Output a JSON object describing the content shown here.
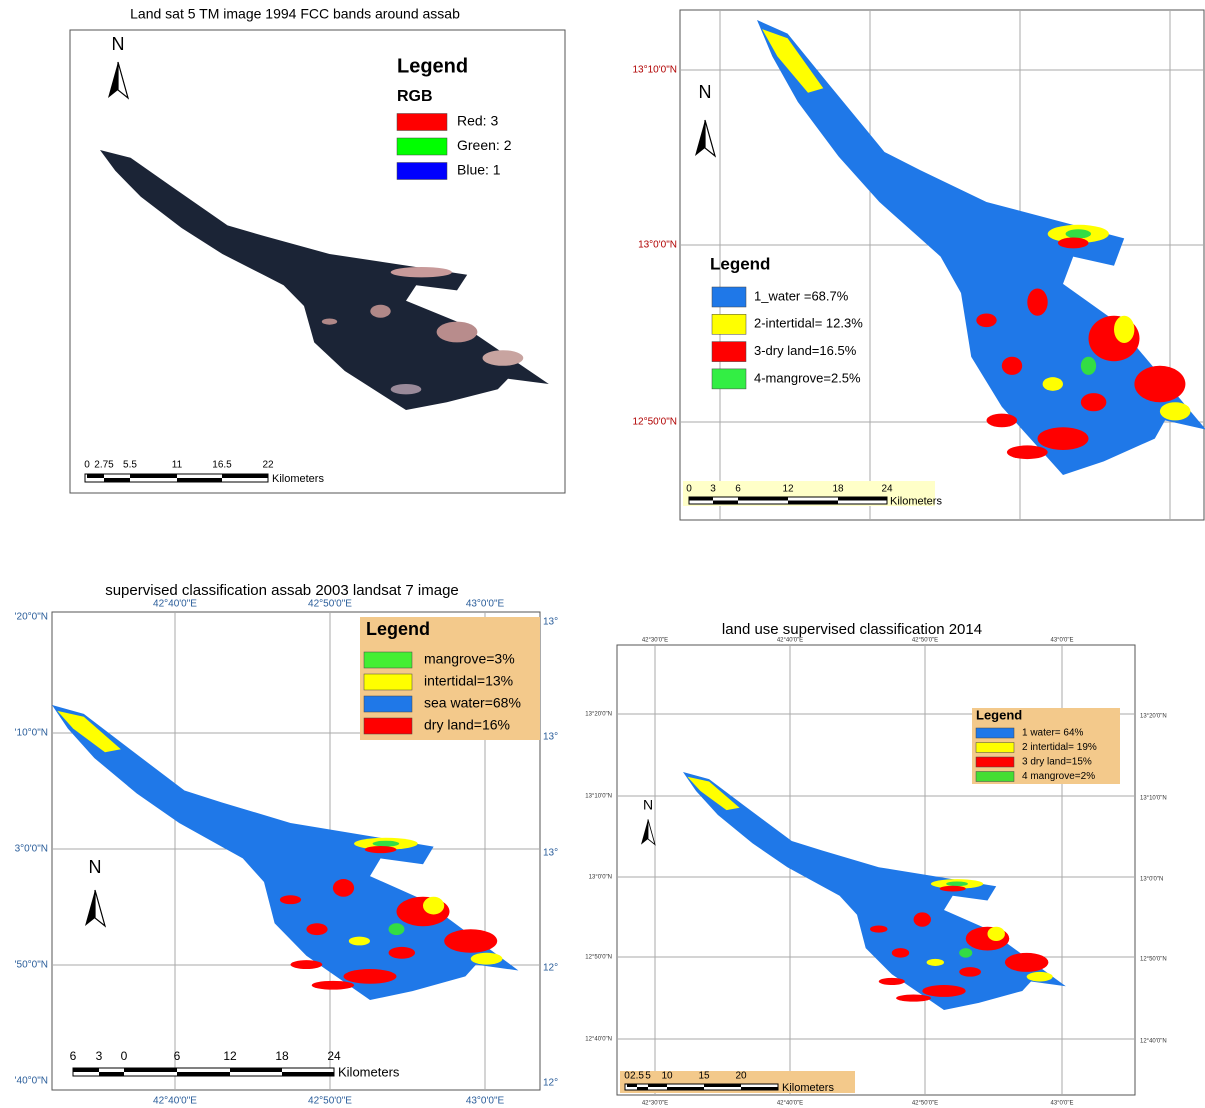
{
  "panels": [
    {
      "title": "Land sat 5 TM image 1994  FCC bands around assab",
      "north": "N",
      "legend": {
        "title": "Legend",
        "subtitle": "RGB",
        "items": [
          {
            "label": "Red:  3",
            "color": "#ff0000"
          },
          {
            "label": "Green: 2",
            "color": "#00ff00"
          },
          {
            "label": "Blue: 1",
            "color": "#0000ff"
          }
        ]
      },
      "scale": {
        "labels": [
          "0",
          "2.75",
          "5.5",
          "11",
          "16.5",
          "22"
        ],
        "unit": "Kilometers"
      }
    },
    {
      "north": "N",
      "lat_labels": [
        "13°10'0\"N",
        "13°0'0\"N",
        "12°50'0\"N"
      ],
      "legend": {
        "title": "Legend",
        "items": [
          {
            "label": "1_water =68.7%",
            "color": "#1f78e8"
          },
          {
            "label": "2-intertidal= 12.3%",
            "color": "#ffff00"
          },
          {
            "label": "3-dry land=16.5%",
            "color": "#ff0000"
          },
          {
            "label": "4-mangrove=2.5%",
            "color": "#33ee44"
          }
        ]
      },
      "scale": {
        "labels": [
          "0",
          "3",
          "6",
          "12",
          "18",
          "24"
        ],
        "unit": "Kilometers"
      }
    },
    {
      "title": "supervised classification assab 2003 landsat 7  image",
      "north": "N",
      "lon_labels_top": [
        "42°40'0\"E",
        "42°50'0\"E",
        "43°0'0\"E"
      ],
      "lon_labels_bottom": [
        "42°40'0\"E",
        "42°50'0\"E",
        "43°0'0\"E"
      ],
      "lat_labels_left": [
        "'20°0\"N",
        "'10°0\"N",
        "3°0'0\"N",
        "'50°0\"N",
        "'40°0\"N"
      ],
      "lat_labels_right": [
        "13°",
        "13°",
        "13°",
        "12°",
        "12°"
      ],
      "legend": {
        "title": "Legend",
        "items": [
          {
            "label": "mangrove=3%",
            "color": "#44ee33"
          },
          {
            "label": "intertidal=13%",
            "color": "#ffff00"
          },
          {
            "label": "sea water=68%",
            "color": "#1f78e8"
          },
          {
            "label": "dry land=16%",
            "color": "#ff0000"
          }
        ]
      },
      "scale": {
        "labels": [
          "6",
          "3",
          "0",
          "6",
          "12",
          "18",
          "24"
        ],
        "unit": "Kilometers"
      }
    },
    {
      "title": "land use supervised classification 2014",
      "north": "N",
      "lon_labels_top": [
        "42°30'0\"E",
        "42°40'0\"E",
        "42°50'0\"E",
        "43°0'0\"E"
      ],
      "lon_labels_bottom": [
        "42°30'0\"E",
        "42°40'0\"E",
        "42°50'0\"E",
        "43°0'0\"E"
      ],
      "lat_labels_left": [
        "13°20'0\"N",
        "13°10'0\"N",
        "13°0'0\"N",
        "12°50'0\"N",
        "12°40'0\"N"
      ],
      "lat_labels_right": [
        "13°20'0\"N",
        "13°10'0\"N",
        "13°0'0\"N",
        "12°50'0\"N",
        "12°40'0\"N"
      ],
      "legend": {
        "title": "Legend",
        "items": [
          {
            "label": "1 water= 64%",
            "color": "#1f78e8"
          },
          {
            "label": "2 intertidal= 19%",
            "color": "#ffff00"
          },
          {
            "label": "3 dry land=15%",
            "color": "#ff0000"
          },
          {
            "label": "4 mangrove=2%",
            "color": "#44dd33"
          }
        ]
      },
      "scale": {
        "labels": [
          "0",
          "2.5",
          "5",
          "10",
          "15",
          "20"
        ],
        "unit": "Kilometers"
      }
    }
  ]
}
